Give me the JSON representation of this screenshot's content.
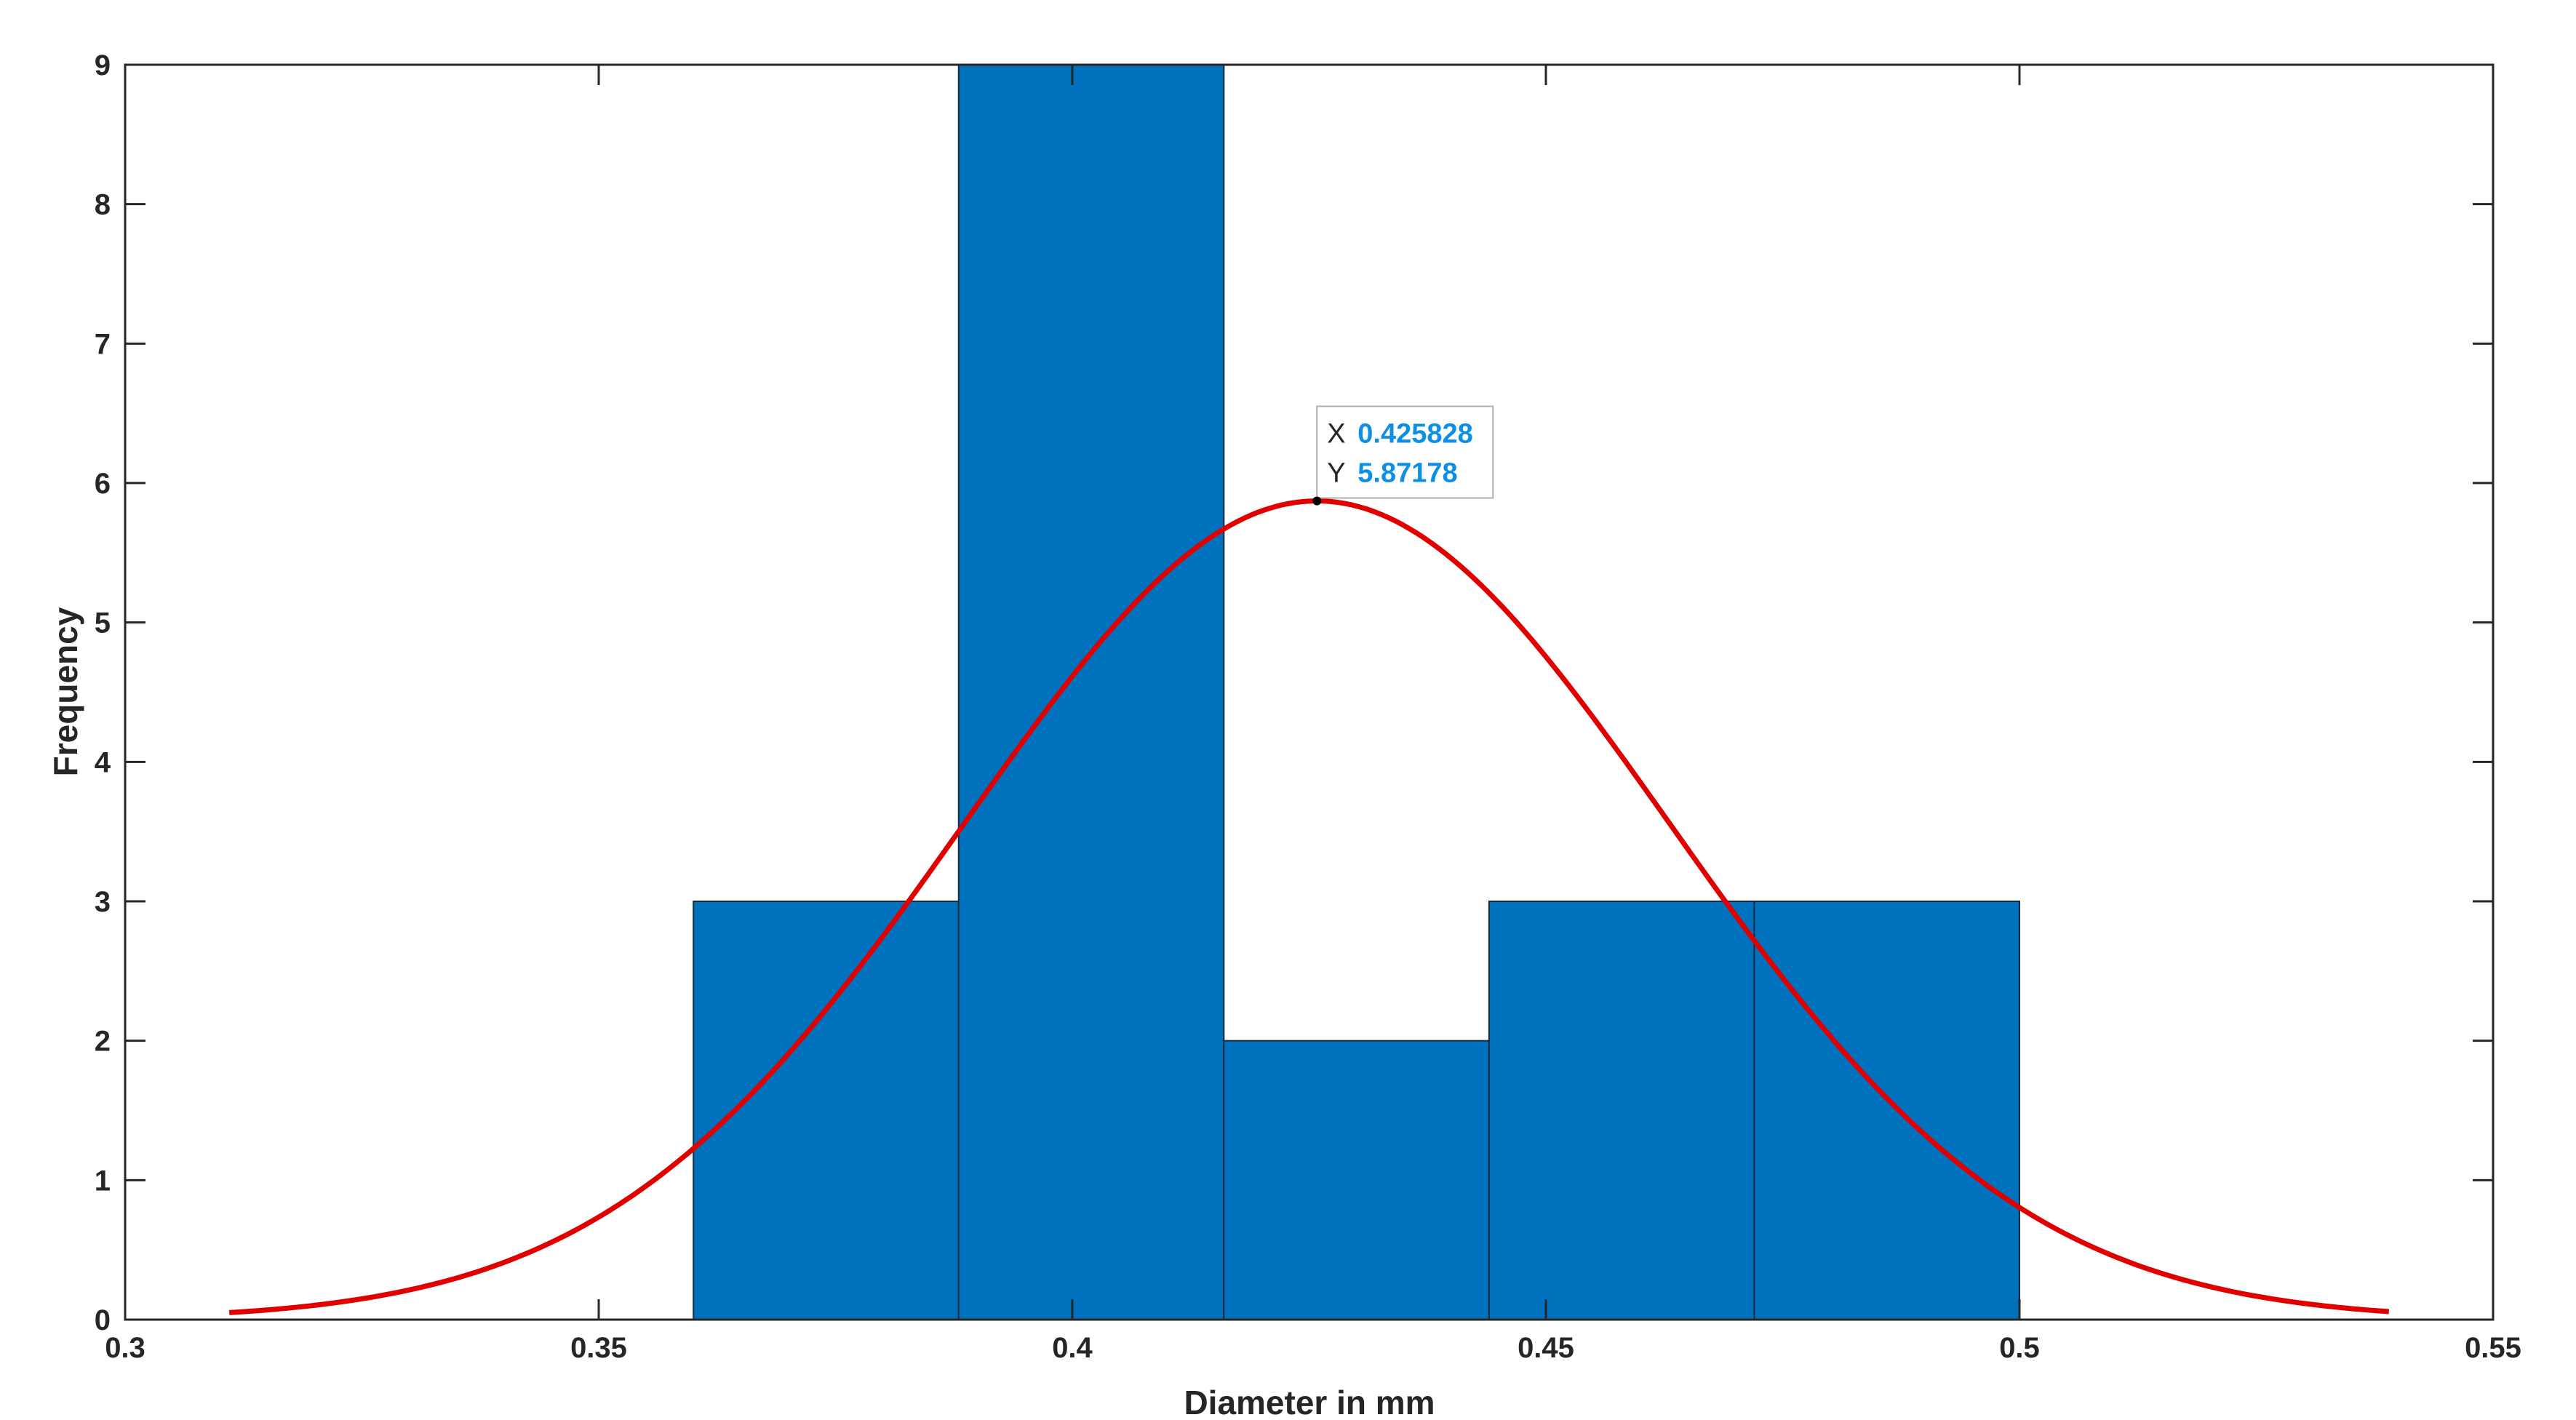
{
  "chart_data": {
    "type": "bar",
    "subtype": "histogram-with-normal-fit",
    "title": "",
    "xlabel": "Diameter in mm",
    "ylabel": "Frequency",
    "xlim": [
      0.3,
      0.55
    ],
    "ylim": [
      0,
      9
    ],
    "xticks": [
      0.3,
      0.35,
      0.4,
      0.45,
      0.5,
      0.55
    ],
    "xtick_labels": [
      "0.3",
      "0.35",
      "0.4",
      "0.45",
      "0.5",
      "0.55"
    ],
    "yticks": [
      0,
      1,
      2,
      3,
      4,
      5,
      6,
      7,
      8,
      9
    ],
    "ytick_labels": [
      "0",
      "1",
      "2",
      "3",
      "4",
      "5",
      "6",
      "7",
      "8",
      "9"
    ],
    "grid": false,
    "bins": [
      {
        "x0": 0.36,
        "x1": 0.388,
        "value": 3
      },
      {
        "x0": 0.388,
        "x1": 0.416,
        "value": 9
      },
      {
        "x0": 0.416,
        "x1": 0.444,
        "value": 2
      },
      {
        "x0": 0.444,
        "x1": 0.472,
        "value": 3
      },
      {
        "x0": 0.472,
        "x1": 0.5,
        "value": 3
      }
    ],
    "bar_color": "#0072bd",
    "fit_curve": {
      "distribution": "normal",
      "mean": 0.425828,
      "peak": 5.87178,
      "sigma": 0.0372,
      "x_range": [
        0.311,
        0.539
      ],
      "color": "#e00000"
    },
    "datatip": {
      "x_key": "X",
      "x_value": "0.425828",
      "y_key": "Y",
      "y_value": "5.87178",
      "x": 0.425828,
      "y": 5.87178
    }
  }
}
